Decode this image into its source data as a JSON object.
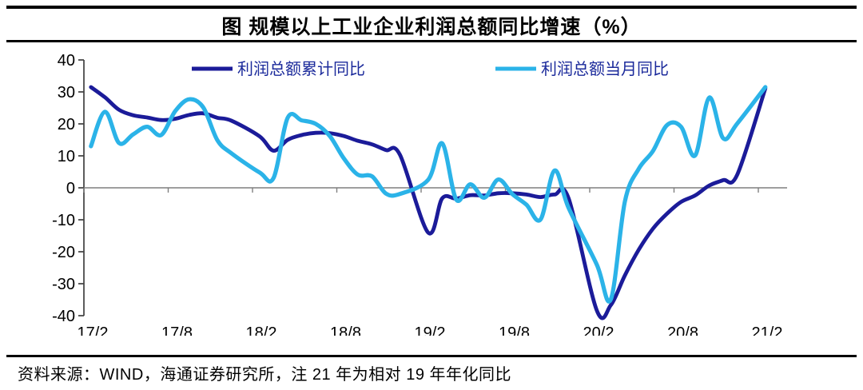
{
  "title": "图 规模以上工业企业利润总额同比增速（%）",
  "footer": "资料来源：WIND，海通证券研究所，注 21 年为相对 19 年年化同比",
  "colors": {
    "cumulative_series": "#1b1b99",
    "monthly_series": "#2bb3e8",
    "legend_text": "#1b2a9b",
    "axis_line": "#7f7f7f",
    "y_axis_line": "#404040",
    "tick_label": "#000000"
  },
  "legend": [
    {
      "label": "利润总额累计同比",
      "color": "#1b1b99"
    },
    {
      "label": "利润总额当月同比",
      "color": "#2bb3e8"
    }
  ],
  "chart_data": {
    "type": "line",
    "title": "图 规模以上工业企业利润总额同比增速（%）",
    "xlabel": "",
    "ylabel": "",
    "ylim": [
      -40,
      40
    ],
    "grid": false,
    "legend_position": "top",
    "y_ticks": [
      40,
      30,
      20,
      10,
      0,
      -10,
      -20,
      -30,
      -40
    ],
    "x_tick_labels": [
      "17/2",
      "17/8",
      "18/2",
      "18/8",
      "19/2",
      "19/8",
      "20/2",
      "20/8",
      "21/2"
    ],
    "categories": [
      "17/2",
      "17/3",
      "17/4",
      "17/5",
      "17/6",
      "17/7",
      "17/8",
      "17/9",
      "17/10",
      "17/11",
      "17/12",
      "18/2",
      "18/3",
      "18/4",
      "18/5",
      "18/6",
      "18/7",
      "18/8",
      "18/9",
      "18/10",
      "18/11",
      "18/12",
      "19/2",
      "19/3",
      "19/4",
      "19/5",
      "19/6",
      "19/7",
      "19/8",
      "19/9",
      "19/10",
      "19/11",
      "19/12",
      "20/2",
      "20/3",
      "20/4",
      "20/5",
      "20/6",
      "20/7",
      "20/8",
      "20/9",
      "20/10",
      "20/11",
      "20/12",
      "21/2"
    ],
    "series": [
      {
        "name": "利润总额累计同比",
        "color": "#1b1b99",
        "values": [
          31.5,
          28.3,
          24.4,
          22.7,
          22.0,
          21.2,
          21.6,
          22.8,
          23.3,
          21.9,
          21.0,
          16.1,
          11.6,
          15.0,
          16.5,
          17.2,
          17.1,
          16.2,
          14.7,
          13.6,
          11.8,
          10.3,
          -14.0,
          -3.3,
          -3.4,
          -2.3,
          -2.4,
          -1.7,
          -1.7,
          -2.1,
          -2.9,
          -2.1,
          -3.3,
          -38.3,
          -36.7,
          -27.4,
          -19.3,
          -12.8,
          -8.1,
          -4.4,
          -2.4,
          0.7,
          2.4,
          4.1,
          31.1
        ]
      },
      {
        "name": "利润总额当月同比",
        "color": "#2bb3e8",
        "values": [
          13.0,
          23.8,
          14.0,
          16.7,
          19.1,
          16.5,
          24.0,
          27.7,
          25.1,
          14.9,
          10.8,
          4.8,
          3.1,
          21.9,
          21.1,
          20.0,
          16.2,
          9.2,
          4.1,
          3.6,
          -1.8,
          -1.9,
          2.5,
          13.9,
          -3.7,
          1.1,
          -3.1,
          2.6,
          -2.0,
          -5.3,
          -9.9,
          5.4,
          -6.3,
          -24.0,
          -34.9,
          -4.3,
          6.0,
          11.5,
          19.6,
          19.1,
          10.1,
          28.2,
          15.5,
          20.1,
          31.5
        ]
      }
    ]
  }
}
